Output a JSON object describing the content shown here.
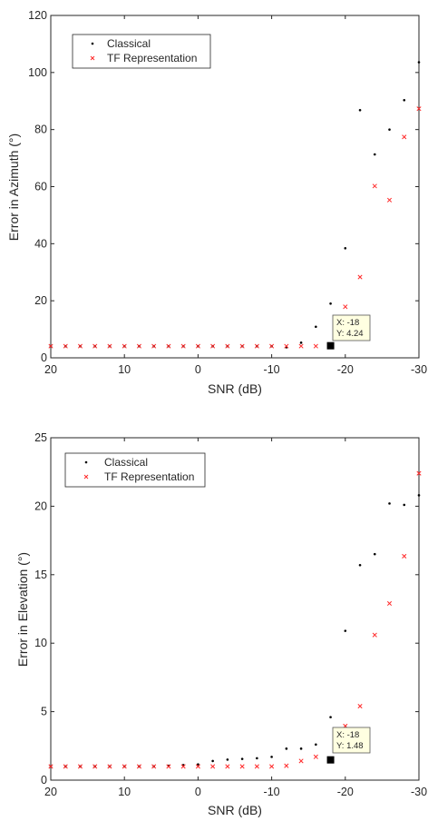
{
  "chart_data": [
    {
      "type": "scatter",
      "title": "",
      "xlabel": "SNR (dB)",
      "ylabel": "Error in Azimuth (°)",
      "xlim": [
        20,
        -30
      ],
      "ylim": [
        0,
        120
      ],
      "x_reversed": true,
      "xticks": [
        20,
        10,
        0,
        -10,
        -20,
        -30
      ],
      "yticks": [
        0,
        20,
        40,
        60,
        80,
        100,
        120
      ],
      "legend_position": "top-left",
      "grid": false,
      "x": [
        20,
        18,
        16,
        14,
        12,
        10,
        8,
        6,
        4,
        2,
        0,
        -2,
        -4,
        -6,
        -8,
        -10,
        -12,
        -14,
        -16,
        -18,
        -20,
        -22,
        -24,
        -26,
        -28,
        -30
      ],
      "series": [
        {
          "name": "Classical",
          "marker": "dot",
          "color": "#000000",
          "values": [
            4.1,
            4.1,
            4.1,
            4.1,
            4.1,
            4.1,
            4.1,
            4.1,
            4.1,
            4.1,
            4.1,
            4.1,
            4.1,
            4.1,
            4.1,
            4.1,
            3.7,
            5.3,
            10.9,
            19.0,
            38.4,
            86.8,
            71.3,
            80.0,
            90.3,
            103.6
          ]
        },
        {
          "name": "TF Representation",
          "marker": "x",
          "color": "#ff2a2a",
          "values": [
            4.1,
            4.1,
            4.1,
            4.1,
            4.1,
            4.1,
            4.1,
            4.1,
            4.1,
            4.1,
            4.1,
            4.1,
            4.1,
            4.1,
            4.1,
            4.1,
            4.1,
            4.1,
            4.1,
            4.24,
            17.9,
            28.3,
            60.2,
            55.3,
            77.4,
            87.3
          ]
        }
      ],
      "datatip": {
        "point": [
          -18,
          4.24
        ],
        "line1": "X: -18",
        "line2": "Y: 4.24"
      }
    },
    {
      "type": "scatter",
      "title": "",
      "xlabel": "SNR (dB)",
      "ylabel": "Error in Elevation (°)",
      "xlim": [
        20,
        -30
      ],
      "ylim": [
        0,
        25
      ],
      "x_reversed": true,
      "xticks": [
        20,
        10,
        0,
        -10,
        -20,
        -30
      ],
      "yticks": [
        0,
        5,
        10,
        15,
        20,
        25
      ],
      "legend_position": "top-left",
      "grid": false,
      "x": [
        20,
        18,
        16,
        14,
        12,
        10,
        8,
        6,
        4,
        2,
        0,
        -2,
        -4,
        -6,
        -8,
        -10,
        -12,
        -14,
        -16,
        -18,
        -20,
        -22,
        -24,
        -26,
        -28,
        -30
      ],
      "series": [
        {
          "name": "Classical",
          "marker": "dot",
          "color": "#000000",
          "values": [
            1.0,
            1.0,
            1.0,
            1.0,
            1.0,
            1.0,
            1.0,
            1.0,
            1.05,
            1.1,
            1.15,
            1.4,
            1.5,
            1.55,
            1.6,
            1.7,
            2.3,
            2.3,
            2.6,
            4.6,
            10.9,
            15.7,
            16.5,
            20.2,
            20.1,
            20.8
          ]
        },
        {
          "name": "TF Representation",
          "marker": "x",
          "color": "#ff2a2a",
          "values": [
            1.0,
            1.0,
            1.0,
            1.0,
            1.0,
            1.0,
            1.0,
            1.0,
            1.0,
            1.0,
            1.0,
            1.0,
            1.0,
            1.0,
            1.0,
            1.0,
            1.05,
            1.4,
            1.7,
            1.48,
            3.95,
            5.4,
            10.6,
            12.9,
            16.35,
            22.4
          ]
        }
      ],
      "datatip": {
        "point": [
          -18,
          1.48
        ],
        "line1": "X: -18",
        "line2": "Y: 1.48"
      }
    }
  ]
}
